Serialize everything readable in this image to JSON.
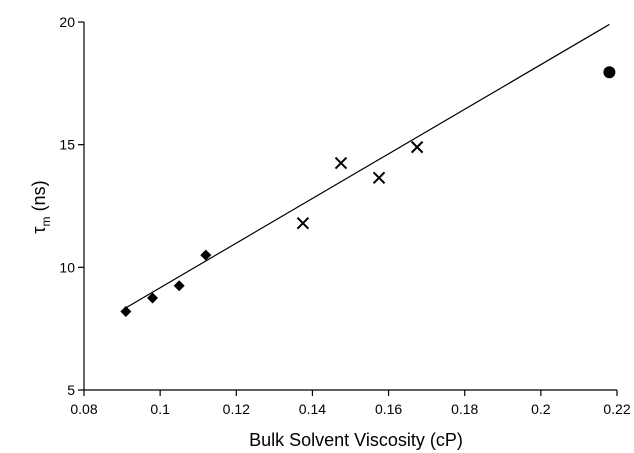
{
  "chart_data": {
    "type": "scatter",
    "xlabel": "Bulk Solvent Viscosity (cP)",
    "ylabel_main": "τ",
    "ylabel_sub": "m",
    "ylabel_unit": " (ns)",
    "xlim": [
      0.08,
      0.22
    ],
    "ylim": [
      5,
      20
    ],
    "x_ticks": [
      0.08,
      0.1,
      0.12,
      0.14,
      0.16,
      0.18,
      0.2,
      0.22
    ],
    "x_tick_labels": [
      "0.08",
      "0.1",
      "0.12",
      "0.14",
      "0.16",
      "0.18",
      "0.2",
      "0.22"
    ],
    "y_ticks": [
      5,
      10,
      15,
      20
    ],
    "y_tick_labels": [
      "5",
      "10",
      "15",
      "20"
    ],
    "grid": false,
    "series": [
      {
        "marker": "diamond",
        "x": [
          0.091,
          0.098,
          0.105,
          0.112
        ],
        "y": [
          8.2,
          8.75,
          9.25,
          10.5
        ]
      },
      {
        "marker": "cross",
        "x": [
          0.1375,
          0.1475,
          0.1575,
          0.1675
        ],
        "y": [
          11.8,
          14.25,
          13.65,
          14.9
        ]
      },
      {
        "marker": "circle",
        "x": [
          0.218
        ],
        "y": [
          17.95
        ]
      }
    ],
    "fit_line": {
      "x": [
        0.091,
        0.218
      ],
      "y": [
        8.35,
        19.9
      ]
    }
  }
}
